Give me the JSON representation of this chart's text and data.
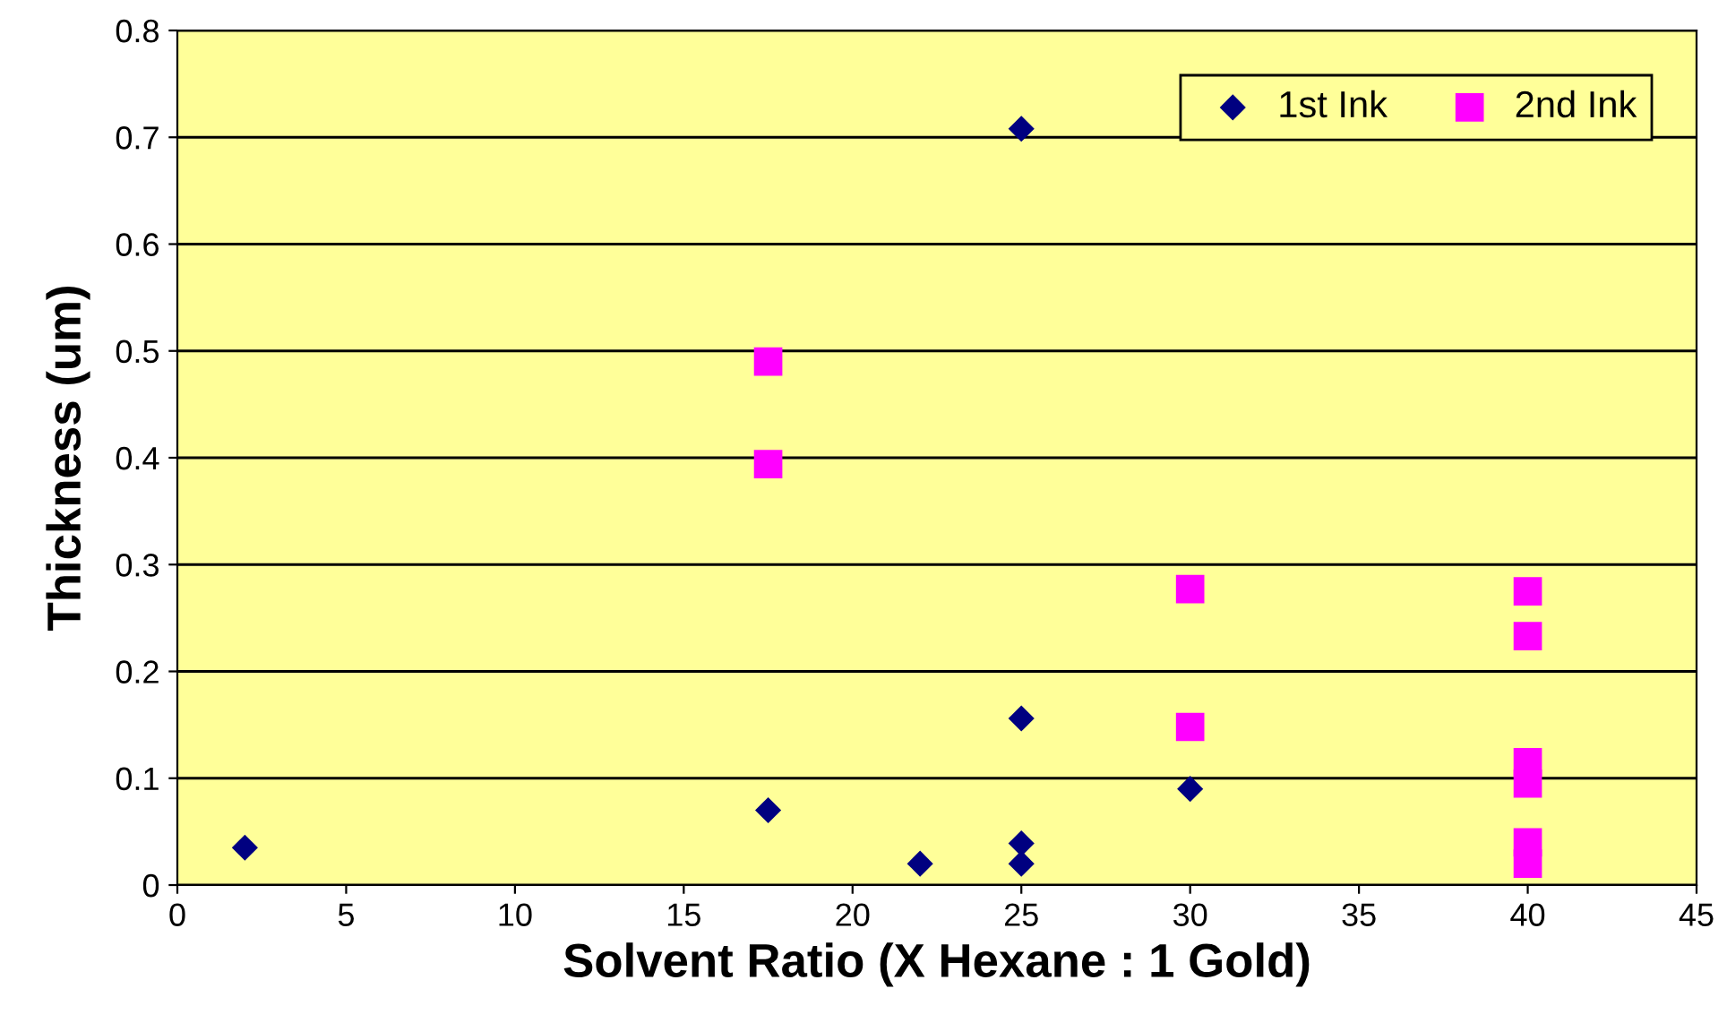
{
  "chart_data": {
    "type": "scatter",
    "xlabel": "Solvent Ratio (X Hexane : 1 Gold)",
    "ylabel": "Thickness (um)",
    "xlim": [
      0,
      45
    ],
    "xticks": [
      0,
      5,
      10,
      15,
      20,
      25,
      30,
      35,
      40,
      45
    ],
    "ylim": [
      0,
      0.8
    ],
    "yticks": [
      0,
      0.1,
      0.2,
      0.3,
      0.4,
      0.5,
      0.6,
      0.7,
      0.8
    ],
    "grid": "y",
    "legend": "top right",
    "series": [
      {
        "name": "1st Ink",
        "color": "#000080",
        "marker": "diamond",
        "x": [
          2,
          17.5,
          22,
          25,
          25,
          25,
          25,
          30
        ],
        "values": [
          0.035,
          0.07,
          0.02,
          0.708,
          0.156,
          0.039,
          0.02,
          0.09
        ]
      },
      {
        "name": "2nd Ink",
        "color": "#ff00ff",
        "marker": "square",
        "x": [
          17.5,
          17.5,
          30,
          30,
          40,
          40,
          40,
          40,
          40,
          40
        ],
        "values": [
          0.49,
          0.394,
          0.277,
          0.148,
          0.275,
          0.233,
          0.115,
          0.095,
          0.04,
          0.02
        ]
      }
    ]
  }
}
